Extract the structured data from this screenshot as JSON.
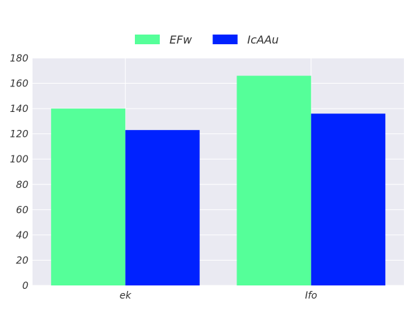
{
  "chart_data": {
    "type": "bar",
    "categories": [
      "ek",
      "Ifo"
    ],
    "series": [
      {
        "name": "EFw",
        "values": [
          140,
          166
        ],
        "color": "#55ff99"
      },
      {
        "name": "IcAAu",
        "values": [
          123,
          136
        ],
        "color": "#0022ff"
      }
    ],
    "ylim": [
      0,
      180
    ],
    "yticks": [
      0,
      20,
      40,
      60,
      80,
      100,
      120,
      140,
      160,
      180
    ],
    "grid": true,
    "legend": "top-center",
    "background_color": "#eaeaf2",
    "grid_color": "#ffffff"
  }
}
